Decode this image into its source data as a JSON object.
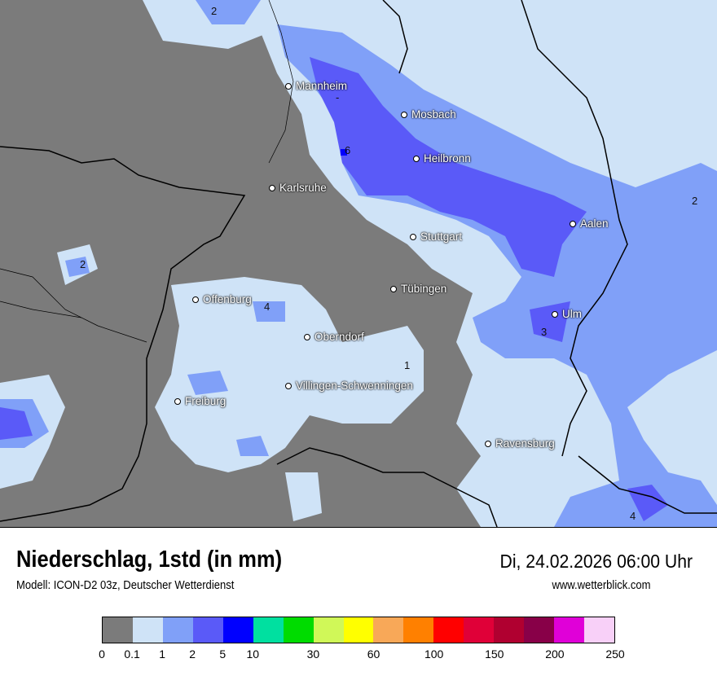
{
  "title": "Niederschlag, 1std (in mm)",
  "subtitle": "Modell: ICON-D2 03z, Deutscher Wetterdienst",
  "datetime": "Di, 24.02.2026 06:00 Uhr",
  "website": "www.wetterblick.com",
  "cities": [
    "Mannheim",
    "Mosbach",
    "Heilbronn",
    "Karlsruhe",
    "Stuttgart",
    "Aalen",
    "Tübingen",
    "Offenburg",
    "Ulm",
    "Oberndorf",
    "Villingen-Schwenningen",
    "Freiburg",
    "Ravensburg"
  ],
  "map_values": [
    "2",
    "6",
    "2",
    "2",
    "4",
    "3",
    "1",
    "4",
    "-"
  ],
  "legend": {
    "colors": [
      "#7b7b7b",
      "#cfe3f7",
      "#80a0f8",
      "#5a5af8",
      "#0000ff",
      "#00e0a0",
      "#00dc00",
      "#d0f858",
      "#ffff00",
      "#f8a858",
      "#ff8000",
      "#ff0000",
      "#e00038",
      "#b00030",
      "#880048",
      "#e000d8",
      "#f8d0f8"
    ],
    "ticks": [
      "0",
      "0.1",
      "1",
      "2",
      "5",
      "10",
      "30",
      "60",
      "100",
      "150",
      "200",
      "250"
    ]
  }
}
